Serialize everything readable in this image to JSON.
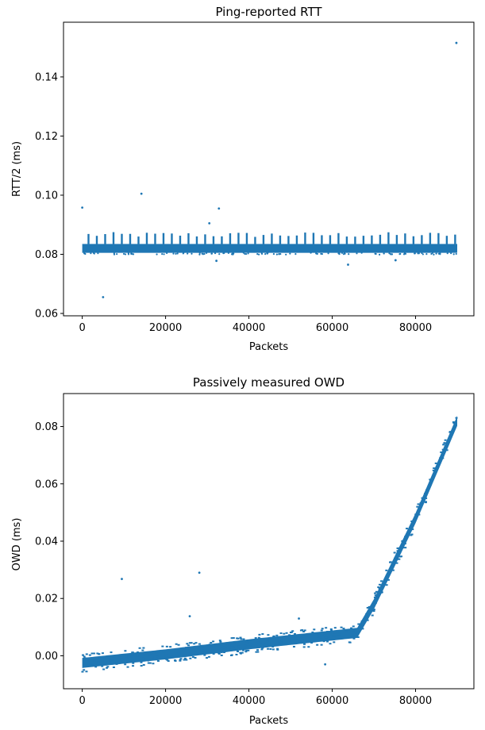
{
  "chart_data": [
    {
      "type": "scatter",
      "title": "Ping-reported RTT",
      "xlabel": "Packets",
      "ylabel": "RTT/2 (ms)",
      "xlim": [
        -4500,
        94000
      ],
      "ylim": [
        0.0592,
        0.1585
      ],
      "xticks": [
        0,
        20000,
        40000,
        60000,
        80000
      ],
      "yticks": [
        0.06,
        0.08,
        0.1,
        0.12,
        0.14
      ],
      "ytick_labels": [
        "0.06",
        "0.08",
        "0.10",
        "0.12",
        "0.14"
      ],
      "color": "#1f77b4",
      "grid": false,
      "band": {
        "x_range": [
          0,
          90000
        ],
        "y_low": 0.0805,
        "y_high": 0.0835,
        "spike_period": 2000,
        "spike_max": 0.0875
      },
      "outliers": [
        {
          "x": 0,
          "y": 0.0958
        },
        {
          "x": 5000,
          "y": 0.0655
        },
        {
          "x": 14200,
          "y": 0.1005
        },
        {
          "x": 30500,
          "y": 0.0905
        },
        {
          "x": 32800,
          "y": 0.0955
        },
        {
          "x": 32200,
          "y": 0.0778
        },
        {
          "x": 63800,
          "y": 0.0765
        },
        {
          "x": 75200,
          "y": 0.078
        },
        {
          "x": 89800,
          "y": 0.1515
        }
      ]
    },
    {
      "type": "scatter",
      "title": "Passively measured OWD",
      "xlabel": "Packets",
      "ylabel": "OWD (ms)",
      "xlim": [
        -4500,
        94000
      ],
      "ylim": [
        -0.0115,
        0.0915
      ],
      "xticks": [
        0,
        20000,
        40000,
        60000,
        80000
      ],
      "yticks": [
        0.0,
        0.02,
        0.04,
        0.06,
        0.08
      ],
      "ytick_labels": [
        "0.00",
        "0.02",
        "0.04",
        "0.06",
        "0.08"
      ],
      "color": "#1f77b4",
      "grid": false,
      "trend": [
        {
          "x": 0,
          "y": -0.0025
        },
        {
          "x": 20000,
          "y": 0.0005
        },
        {
          "x": 40000,
          "y": 0.004
        },
        {
          "x": 66000,
          "y": 0.008
        },
        {
          "x": 70000,
          "y": 0.018
        },
        {
          "x": 80000,
          "y": 0.048
        },
        {
          "x": 90000,
          "y": 0.082
        }
      ],
      "band_width": 0.0035,
      "outliers": [
        {
          "x": 9500,
          "y": 0.0268
        },
        {
          "x": 25800,
          "y": 0.0138
        },
        {
          "x": 28100,
          "y": 0.029
        },
        {
          "x": 58300,
          "y": -0.003
        },
        {
          "x": 52000,
          "y": 0.013
        }
      ]
    }
  ]
}
